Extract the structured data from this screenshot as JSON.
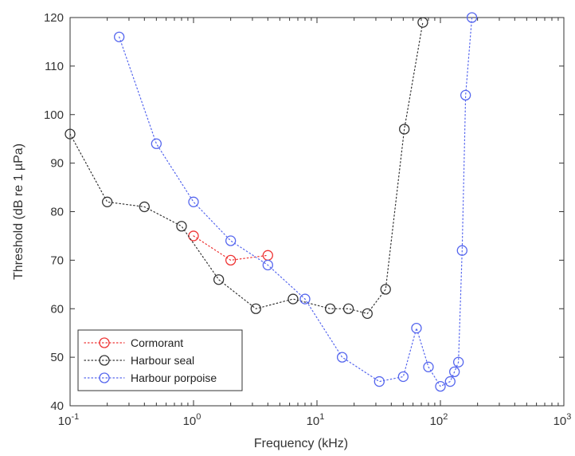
{
  "chart_data": {
    "type": "scatter",
    "xlabel": "Frequency (kHz)",
    "ylabel": "Threshold (dB re 1 µPa)",
    "xscale": "log",
    "xlim": [
      0.1,
      1000
    ],
    "ylim": [
      40,
      120
    ],
    "x_ticks": [
      {
        "base": "10",
        "exp": "-1"
      },
      {
        "base": "10",
        "exp": "0"
      },
      {
        "base": "10",
        "exp": "1"
      },
      {
        "base": "10",
        "exp": "2"
      },
      {
        "base": "10",
        "exp": "3"
      }
    ],
    "y_ticks": [
      "40",
      "50",
      "60",
      "70",
      "80",
      "90",
      "100",
      "110",
      "120"
    ],
    "grid": false,
    "legend_position": "bottom-left",
    "line_style": "dotted",
    "marker": "open-circle",
    "series": [
      {
        "name": "Cormorant",
        "color": "#ee3333",
        "x": [
          1,
          2,
          4
        ],
        "y": [
          75,
          70,
          71
        ]
      },
      {
        "name": "Harbour seal",
        "color": "#333333",
        "x": [
          0.1,
          0.2,
          0.4,
          0.8,
          1.6,
          3.2,
          6.4,
          12.8,
          18,
          25.6,
          36,
          51,
          72
        ],
        "y": [
          96,
          82,
          81,
          77,
          66,
          60,
          62,
          60,
          60,
          59,
          64,
          97,
          119
        ]
      },
      {
        "name": "Harbour porpoise",
        "color": "#5566ee",
        "x": [
          0.25,
          0.5,
          1,
          2,
          4,
          8,
          16,
          32,
          50,
          64,
          80,
          100,
          120,
          130,
          140,
          150,
          160,
          180
        ],
        "y": [
          116,
          94,
          82,
          74,
          69,
          62,
          50,
          45,
          46,
          56,
          48,
          44,
          45,
          47,
          49,
          72,
          104,
          120
        ]
      }
    ]
  }
}
